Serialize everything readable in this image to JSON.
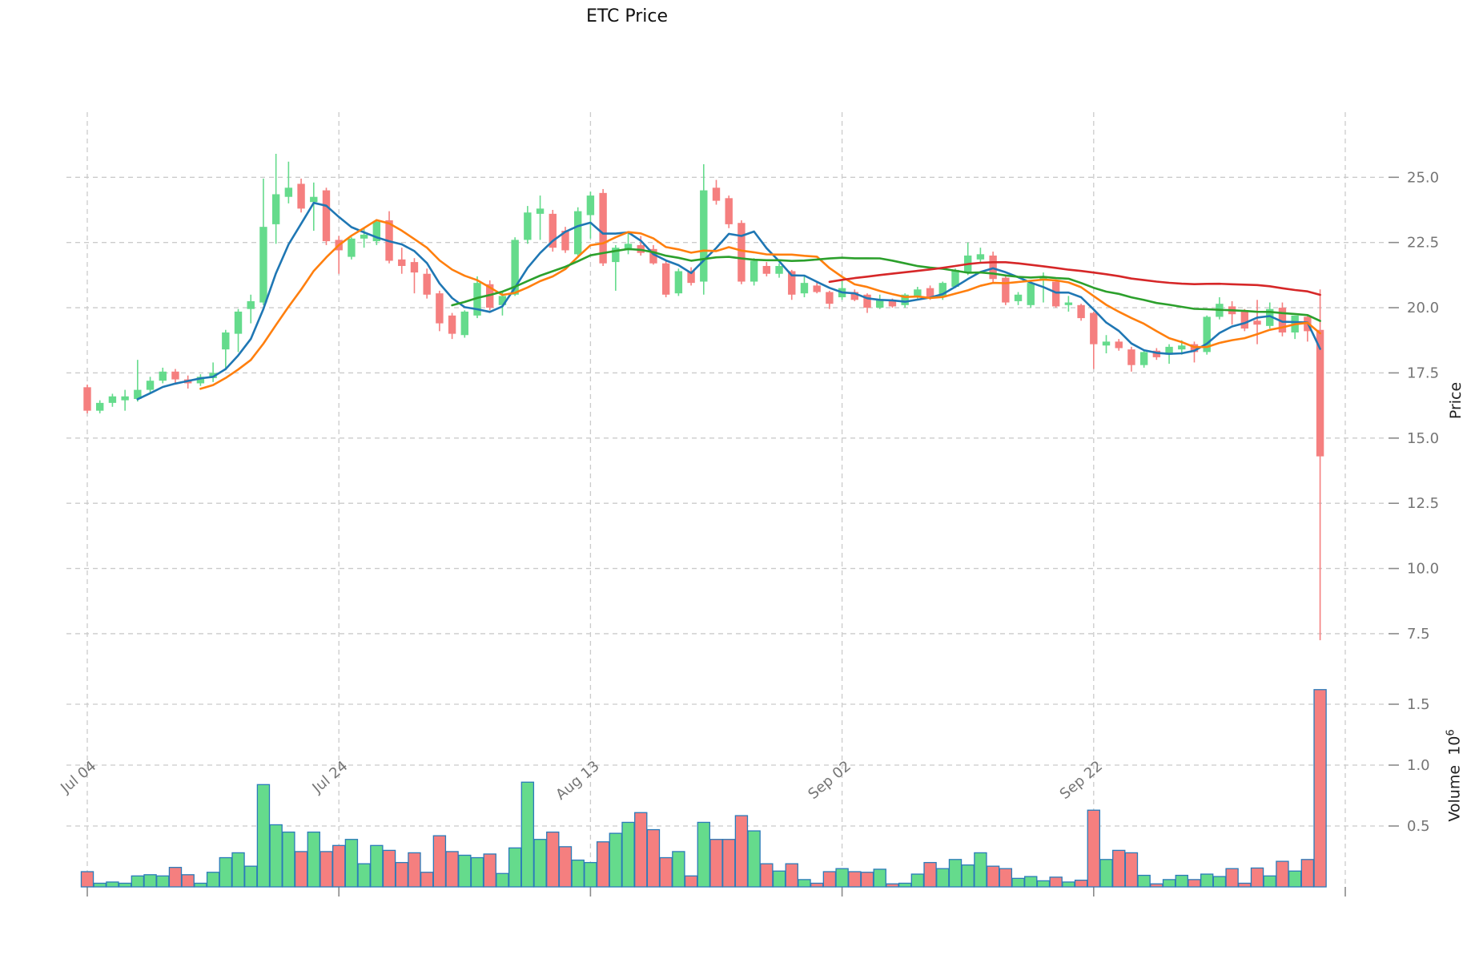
{
  "title": "ETC Price",
  "price_axis": {
    "label": "Price",
    "ticks": [
      {
        "label": "25.0",
        "value": 25.0
      },
      {
        "label": "22.5",
        "value": 22.5
      },
      {
        "label": "20.0",
        "value": 20.0
      },
      {
        "label": "17.5",
        "value": 17.5
      },
      {
        "label": "15.0",
        "value": 15.0
      },
      {
        "label": "12.5",
        "value": 12.5
      },
      {
        "label": "10.0",
        "value": 10.0
      },
      {
        "label": "7.5",
        "value": 7.5
      }
    ]
  },
  "volume_axis": {
    "label_text": "Volume",
    "label_base": "10",
    "label_exp": "6",
    "ticks": [
      {
        "label": "1.5",
        "value": 1.5
      },
      {
        "label": "1.0",
        "value": 1.0
      },
      {
        "label": "0.5",
        "value": 0.5
      }
    ]
  },
  "x_axis": {
    "ticks": [
      {
        "label": "Jul 04",
        "index": 0
      },
      {
        "label": "Jul 24",
        "index": 20
      },
      {
        "label": "Aug 13",
        "index": 40
      },
      {
        "label": "Sep 02",
        "index": 60
      },
      {
        "label": "Sep 22",
        "index": 80
      },
      {
        "label": "",
        "index": 100
      }
    ]
  },
  "colors": {
    "up": "#65DB8C",
    "down": "#F57F7F",
    "volume_edge": "#2B7BBA",
    "grid": "#cbcbcb",
    "tick_text": "#757575",
    "ma_blue": "#1f77b4",
    "ma_orange": "#ff7f0e",
    "ma_green": "#2ca02c",
    "ma_red": "#d62728"
  },
  "chart_data": {
    "type": "candlestick",
    "title": "ETC Price",
    "ylabel": "Price",
    "ylabel_lower": "Volume 10^6",
    "price_axis_range": [
      6.5,
      27.5
    ],
    "volume_unit_millions": true,
    "legend_position": "none",
    "grid": true,
    "dates": [
      "Jul 04",
      "Jul 05",
      "Jul 06",
      "Jul 07",
      "Jul 08",
      "Jul 09",
      "Jul 10",
      "Jul 11",
      "Jul 12",
      "Jul 13",
      "Jul 14",
      "Jul 15",
      "Jul 16",
      "Jul 17",
      "Jul 18",
      "Jul 19",
      "Jul 20",
      "Jul 21",
      "Jul 22",
      "Jul 23",
      "Jul 24",
      "Jul 25",
      "Jul 26",
      "Jul 27",
      "Jul 28",
      "Jul 29",
      "Jul 30",
      "Jul 31",
      "Aug 01",
      "Aug 02",
      "Aug 03",
      "Aug 04",
      "Aug 05",
      "Aug 06",
      "Aug 07",
      "Aug 08",
      "Aug 09",
      "Aug 10",
      "Aug 11",
      "Aug 12",
      "Aug 13",
      "Aug 14",
      "Aug 15",
      "Aug 16",
      "Aug 17",
      "Aug 18",
      "Aug 19",
      "Aug 20",
      "Aug 21",
      "Aug 22",
      "Aug 23",
      "Aug 24",
      "Aug 25",
      "Aug 26",
      "Aug 27",
      "Aug 28",
      "Aug 29",
      "Aug 30",
      "Aug 31",
      "Sep 01",
      "Sep 02",
      "Sep 03",
      "Sep 04",
      "Sep 05",
      "Sep 06",
      "Sep 07",
      "Sep 08",
      "Sep 09",
      "Sep 10",
      "Sep 11",
      "Sep 12",
      "Sep 13",
      "Sep 14",
      "Sep 15",
      "Sep 16",
      "Sep 17",
      "Sep 18",
      "Sep 19",
      "Sep 20",
      "Sep 21",
      "Sep 22",
      "Sep 23",
      "Sep 24",
      "Sep 25",
      "Sep 26",
      "Sep 27",
      "Sep 28",
      "Sep 29",
      "Sep 30",
      "Oct 01",
      "Oct 02",
      "Oct 03",
      "Oct 04",
      "Oct 05",
      "Oct 06",
      "Oct 07",
      "Oct 08",
      "Oct 09",
      "Oct 10"
    ],
    "open": [
      16.95,
      16.05,
      16.35,
      16.45,
      16.5,
      16.85,
      17.2,
      17.55,
      17.25,
      17.1,
      17.3,
      18.4,
      19.0,
      19.95,
      20.2,
      23.2,
      24.25,
      24.75,
      24.05,
      24.5,
      22.6,
      21.95,
      22.65,
      22.55,
      23.35,
      21.85,
      21.75,
      21.3,
      20.55,
      19.7,
      18.95,
      19.7,
      20.9,
      20.1,
      20.5,
      22.6,
      23.6,
      23.6,
      22.95,
      22.05,
      23.55,
      24.4,
      21.75,
      22.2,
      22.4,
      22.25,
      21.7,
      20.55,
      21.4,
      21.0,
      24.6,
      24.2,
      23.25,
      21.0,
      21.6,
      21.3,
      21.4,
      20.55,
      20.85,
      20.6,
      20.4,
      20.6,
      20.5,
      20.0,
      20.25,
      20.1,
      20.45,
      20.75,
      20.4,
      20.8,
      21.35,
      21.85,
      22.0,
      21.15,
      20.25,
      20.1,
      21.1,
      21.0,
      20.1,
      20.1,
      19.8,
      18.55,
      18.7,
      18.4,
      17.8,
      18.35,
      18.2,
      18.4,
      18.6,
      18.3,
      19.65,
      20.05,
      19.9,
      19.5,
      19.3,
      20.0,
      19.05,
      19.65,
      19.15
    ],
    "high": [
      17.05,
      16.45,
      16.7,
      16.85,
      18.0,
      17.35,
      17.7,
      17.65,
      17.4,
      17.45,
      17.9,
      19.15,
      19.95,
      20.5,
      24.95,
      25.9,
      25.6,
      24.95,
      24.8,
      24.6,
      22.75,
      22.7,
      23.05,
      23.35,
      23.7,
      22.3,
      21.9,
      21.5,
      20.65,
      19.8,
      19.9,
      21.2,
      21.05,
      20.6,
      22.7,
      23.9,
      24.3,
      23.75,
      23.1,
      23.85,
      24.45,
      24.55,
      22.4,
      22.9,
      22.75,
      22.4,
      21.8,
      21.5,
      21.55,
      25.5,
      24.9,
      24.3,
      23.35,
      21.9,
      21.75,
      21.7,
      21.45,
      21.2,
      21.0,
      20.65,
      21.1,
      20.7,
      20.55,
      20.5,
      20.35,
      20.55,
      20.8,
      20.85,
      21.0,
      21.5,
      22.5,
      22.3,
      22.15,
      21.25,
      20.6,
      21.05,
      21.35,
      21.05,
      20.45,
      20.15,
      19.85,
      18.95,
      18.8,
      18.5,
      18.4,
      18.45,
      18.6,
      18.75,
      18.7,
      19.7,
      20.4,
      20.25,
      19.95,
      20.3,
      20.2,
      20.2,
      19.7,
      19.7,
      20.7
    ],
    "low": [
      15.95,
      15.95,
      16.2,
      16.05,
      16.4,
      16.7,
      17.1,
      17.05,
      16.9,
      17.0,
      17.15,
      17.6,
      18.3,
      19.4,
      20.1,
      22.45,
      24.0,
      23.65,
      22.95,
      22.4,
      21.3,
      21.85,
      22.3,
      22.4,
      21.7,
      21.3,
      20.55,
      20.35,
      19.1,
      18.8,
      18.85,
      19.6,
      19.9,
      19.7,
      20.45,
      22.45,
      22.6,
      22.15,
      22.1,
      22.0,
      22.65,
      21.6,
      20.65,
      22.05,
      22.0,
      21.65,
      20.4,
      20.45,
      20.85,
      20.5,
      23.95,
      23.05,
      20.9,
      20.85,
      21.2,
      21.15,
      20.3,
      20.4,
      20.55,
      19.95,
      20.3,
      20.25,
      19.8,
      19.95,
      20.0,
      20.0,
      20.35,
      20.3,
      20.3,
      20.75,
      21.25,
      21.7,
      20.95,
      20.1,
      20.1,
      20.0,
      20.2,
      20.0,
      19.85,
      19.5,
      17.65,
      18.25,
      18.35,
      17.55,
      17.7,
      18.0,
      17.85,
      18.2,
      17.9,
      18.2,
      19.55,
      19.35,
      19.1,
      18.6,
      19.2,
      18.9,
      18.8,
      18.7,
      7.25
    ],
    "close": [
      16.05,
      16.35,
      16.6,
      16.6,
      16.85,
      17.2,
      17.55,
      17.25,
      17.1,
      17.35,
      17.5,
      19.05,
      19.85,
      20.25,
      23.1,
      24.35,
      24.6,
      23.8,
      24.25,
      22.55,
      22.2,
      22.65,
      22.8,
      23.3,
      21.8,
      21.6,
      21.35,
      20.5,
      19.4,
      19.0,
      19.85,
      20.95,
      20.0,
      20.45,
      22.6,
      23.65,
      23.8,
      22.3,
      22.2,
      23.7,
      24.3,
      21.7,
      22.3,
      22.45,
      22.1,
      21.7,
      20.5,
      21.4,
      20.95,
      24.5,
      24.1,
      23.2,
      21.0,
      21.8,
      21.3,
      21.6,
      20.5,
      20.95,
      20.6,
      20.15,
      20.75,
      20.3,
      20.0,
      20.3,
      20.05,
      20.5,
      20.7,
      20.4,
      20.95,
      21.45,
      22.0,
      22.05,
      21.1,
      20.2,
      20.5,
      20.95,
      21.2,
      20.05,
      20.2,
      19.6,
      18.6,
      18.7,
      18.45,
      17.8,
      18.3,
      18.1,
      18.5,
      18.55,
      18.3,
      19.65,
      20.15,
      19.75,
      19.2,
      19.35,
      19.95,
      19.05,
      19.7,
      19.1,
      14.3
    ],
    "volume_millions": [
      0.125,
      0.03,
      0.04,
      0.03,
      0.09,
      0.1,
      0.09,
      0.16,
      0.1,
      0.03,
      0.12,
      0.24,
      0.28,
      0.17,
      0.84,
      0.51,
      0.45,
      0.29,
      0.45,
      0.29,
      0.34,
      0.39,
      0.19,
      0.34,
      0.3,
      0.2,
      0.28,
      0.12,
      0.42,
      0.29,
      0.26,
      0.24,
      0.27,
      0.11,
      0.32,
      0.86,
      0.39,
      0.45,
      0.33,
      0.22,
      0.2,
      0.37,
      0.44,
      0.53,
      0.61,
      0.47,
      0.24,
      0.29,
      0.09,
      0.53,
      0.39,
      0.39,
      0.585,
      0.46,
      0.19,
      0.13,
      0.19,
      0.06,
      0.03,
      0.125,
      0.15,
      0.125,
      0.12,
      0.145,
      0.025,
      0.03,
      0.105,
      0.2,
      0.15,
      0.225,
      0.18,
      0.28,
      0.17,
      0.15,
      0.07,
      0.085,
      0.05,
      0.08,
      0.04,
      0.055,
      0.63,
      0.225,
      0.3,
      0.28,
      0.095,
      0.025,
      0.06,
      0.095,
      0.06,
      0.105,
      0.085,
      0.15,
      0.03,
      0.155,
      0.09,
      0.21,
      0.13,
      0.225,
      1.62
    ],
    "moving_averages": [
      {
        "name": "ma5",
        "window": 5,
        "color": "#1f77b4"
      },
      {
        "name": "ma10",
        "window": 10,
        "color": "#ff7f0e"
      },
      {
        "name": "ma30",
        "window": 30,
        "color": "#2ca02c"
      },
      {
        "name": "ma60",
        "window": 60,
        "color": "#d62728"
      }
    ]
  }
}
